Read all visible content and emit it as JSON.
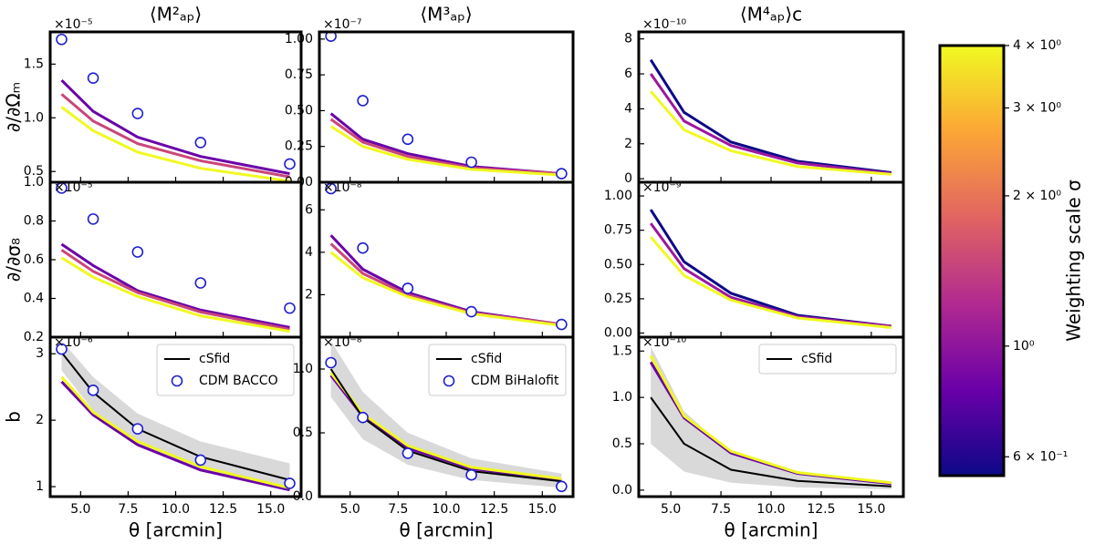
{
  "chart_data": [
    {
      "type": "line",
      "title": "⟨M²ₐₚ⟩",
      "ylabel": "∂/∂Ωₘ",
      "offset": "×10⁻⁵",
      "x": [
        4,
        5.66,
        8,
        11.31,
        16
      ],
      "xlim": [
        3.4,
        16.6
      ],
      "xticks": [
        5,
        7.5,
        10,
        12.5,
        15
      ],
      "ylim": [
        0.4,
        1.8
      ],
      "yticks": [
        0.5,
        {
          "value": 1,
          "label": "1.0"
        },
        1.5
      ],
      "series": [
        {
          "color": "#6a00a8",
          "values": [
            1.35,
            1.06,
            0.82,
            0.64,
            0.48
          ]
        },
        {
          "color": "#cb4679",
          "values": [
            1.22,
            0.97,
            0.76,
            0.6,
            0.45
          ]
        },
        {
          "color": "#f0f921",
          "values": [
            1.1,
            0.88,
            0.68,
            0.53,
            0.41
          ]
        },
        {
          "color": "#1f1fd0",
          "marker": "circle",
          "values": [
            1.73,
            1.37,
            1.04,
            0.77,
            0.57
          ]
        }
      ]
    },
    {
      "type": "line",
      "title": "⟨M³ₐₚ⟩",
      "offset": "×10⁻⁷",
      "x": [
        4,
        5.66,
        8,
        11.31,
        16
      ],
      "xlim": [
        3.4,
        16.6
      ],
      "xticks": [
        5,
        7.5,
        10,
        12.5,
        15
      ],
      "ylim": [
        0,
        1.05
      ],
      "yticks": [
        {
          "value": 0,
          "label": "0.00"
        },
        0.25,
        {
          "value": 0.5,
          "label": "0.50"
        },
        0.75,
        {
          "value": 1,
          "label": "1.00"
        }
      ],
      "series": [
        {
          "color": "#6a00a8",
          "values": [
            0.48,
            0.3,
            0.2,
            0.11,
            0.06
          ]
        },
        {
          "color": "#cb4679",
          "values": [
            0.44,
            0.28,
            0.18,
            0.1,
            0.06
          ]
        },
        {
          "color": "#f0f921",
          "values": [
            0.39,
            0.25,
            0.16,
            0.09,
            0.05
          ]
        },
        {
          "color": "#1f1fd0",
          "marker": "circle",
          "values": [
            1.02,
            0.57,
            0.3,
            0.14,
            0.06
          ]
        }
      ]
    },
    {
      "type": "line",
      "title": "⟨M⁴ₐₚ⟩c",
      "offset": "×10⁻¹⁰",
      "x": [
        4,
        5.66,
        8,
        11.31,
        16
      ],
      "xlim": [
        3.4,
        16.6
      ],
      "xticks": [
        5,
        7.5,
        10,
        12.5,
        15
      ],
      "ylim": [
        -0.2,
        8.4
      ],
      "yticks": [
        0,
        2,
        4,
        6,
        8
      ],
      "series": [
        {
          "color": "#0d0887",
          "values": [
            6.8,
            3.8,
            2.1,
            1.0,
            0.35
          ]
        },
        {
          "color": "#9c179e",
          "values": [
            6.0,
            3.3,
            1.9,
            0.9,
            0.3
          ]
        },
        {
          "color": "#f0f921",
          "values": [
            5.0,
            2.8,
            1.6,
            0.7,
            0.25
          ]
        }
      ]
    },
    {
      "type": "line",
      "ylabel": "∂/∂σ₈",
      "offset": "×10⁻⁵",
      "x": [
        4,
        5.66,
        8,
        11.31,
        16
      ],
      "xlim": [
        3.4,
        16.6
      ],
      "xticks": [
        5,
        7.5,
        10,
        12.5,
        15
      ],
      "ylim": [
        0.2,
        1.0
      ],
      "yticks": [
        0.2,
        0.4,
        0.6,
        0.8,
        {
          "value": 1,
          "label": "1.0"
        }
      ],
      "series": [
        {
          "color": "#6a00a8",
          "values": [
            0.68,
            0.57,
            0.44,
            0.34,
            0.25
          ]
        },
        {
          "color": "#cb4679",
          "values": [
            0.65,
            0.54,
            0.43,
            0.33,
            0.24
          ]
        },
        {
          "color": "#f0f921",
          "values": [
            0.61,
            0.51,
            0.41,
            0.31,
            0.23
          ]
        },
        {
          "color": "#1f1fd0",
          "marker": "circle",
          "values": [
            0.97,
            0.81,
            0.64,
            0.48,
            0.35
          ]
        }
      ]
    },
    {
      "type": "line",
      "offset": "×10⁻⁸",
      "x": [
        4,
        5.66,
        8,
        11.31,
        16
      ],
      "xlim": [
        3.4,
        16.6
      ],
      "xticks": [
        5,
        7.5,
        10,
        12.5,
        15
      ],
      "ylim": [
        0,
        7.3
      ],
      "yticks": [
        2,
        4,
        6
      ],
      "series": [
        {
          "color": "#6a00a8",
          "values": [
            4.8,
            3.2,
            2.1,
            1.2,
            0.6
          ]
        },
        {
          "color": "#cb4679",
          "values": [
            4.4,
            3.0,
            2.0,
            1.15,
            0.6
          ]
        },
        {
          "color": "#f0f921",
          "values": [
            4.0,
            2.8,
            1.9,
            1.1,
            0.55
          ]
        },
        {
          "color": "#1f1fd0",
          "marker": "circle",
          "values": [
            7.0,
            4.2,
            2.3,
            1.2,
            0.6
          ]
        }
      ]
    },
    {
      "type": "line",
      "offset": "×10⁻⁹",
      "x": [
        4,
        5.66,
        8,
        11.31,
        16
      ],
      "xlim": [
        3.4,
        16.6
      ],
      "xticks": [
        5,
        7.5,
        10,
        12.5,
        15
      ],
      "ylim": [
        -0.03,
        1.1
      ],
      "yticks": [
        {
          "value": 0,
          "label": "0.00"
        },
        0.25,
        {
          "value": 0.5,
          "label": "0.50"
        },
        0.75,
        {
          "value": 1,
          "label": "1.00"
        }
      ],
      "series": [
        {
          "color": "#0d0887",
          "values": [
            0.9,
            0.52,
            0.29,
            0.13,
            0.05
          ]
        },
        {
          "color": "#9c179e",
          "values": [
            0.8,
            0.47,
            0.26,
            0.12,
            0.05
          ]
        },
        {
          "color": "#f0f921",
          "values": [
            0.7,
            0.42,
            0.24,
            0.11,
            0.04
          ]
        }
      ]
    },
    {
      "type": "line",
      "ylabel": "b",
      "xlabel": "θ [arcmin]",
      "offset": "×10⁻⁶",
      "legend": "upper right",
      "x": [
        4,
        5.66,
        8,
        11.31,
        16
      ],
      "xlim": [
        3.4,
        16.6
      ],
      "xticks": [
        {
          "value": 5,
          "label": "5.0"
        },
        7.5,
        {
          "value": 10,
          "label": "10.0"
        },
        12.5,
        {
          "value": 15,
          "label": "15.0"
        }
      ],
      "ylim": [
        0.85,
        3.25
      ],
      "yticks": [
        1,
        2,
        3
      ],
      "band": {
        "color": "#d9d9d9",
        "lower": [
          2.75,
          2.15,
          1.65,
          1.25,
          0.95
        ],
        "upper": [
          3.2,
          2.65,
          2.1,
          1.68,
          1.35
        ]
      },
      "series": [
        {
          "color": "#6a00a8",
          "values": [
            2.58,
            2.08,
            1.63,
            1.25,
            0.95
          ]
        },
        {
          "color": "#f0f921",
          "values": [
            2.65,
            2.12,
            1.68,
            1.3,
            0.98
          ]
        },
        {
          "name": "cSfid",
          "color": "#000000",
          "values": [
            3.02,
            2.42,
            1.87,
            1.45,
            1.1
          ]
        },
        {
          "name": "CDM BACCO",
          "color": "#1f1fd0",
          "marker": "circle",
          "values": [
            3.07,
            2.45,
            1.87,
            1.4,
            1.05
          ]
        }
      ]
    },
    {
      "type": "line",
      "xlabel": "θ [arcmin]",
      "offset": "×10⁻⁸",
      "legend": "upper right",
      "x": [
        4,
        5.66,
        8,
        11.31,
        16
      ],
      "xlim": [
        3.4,
        16.6
      ],
      "xticks": [
        {
          "value": 5,
          "label": "5.0"
        },
        7.5,
        {
          "value": 10,
          "label": "10.0"
        },
        12.5,
        {
          "value": 15,
          "label": "15.0"
        }
      ],
      "ylim": [
        0,
        1.25
      ],
      "yticks": [
        {
          "value": 0,
          "label": "0.0"
        },
        0.5,
        {
          "value": 1,
          "label": "1.0"
        }
      ],
      "band": {
        "color": "#d9d9d9",
        "lower": [
          0.78,
          0.45,
          0.25,
          0.13,
          0.07
        ],
        "upper": [
          1.22,
          0.82,
          0.5,
          0.3,
          0.18
        ]
      },
      "series": [
        {
          "color": "#6a00a8",
          "values": [
            0.95,
            0.63,
            0.38,
            0.22,
            0.13
          ]
        },
        {
          "color": "#f0f921",
          "values": [
            0.97,
            0.65,
            0.4,
            0.23,
            0.14
          ]
        },
        {
          "name": "cSfid",
          "color": "#000000",
          "values": [
            1.0,
            0.62,
            0.36,
            0.2,
            0.12
          ]
        },
        {
          "name": "CDM BiHalofit",
          "color": "#1f1fd0",
          "marker": "circle",
          "values": [
            1.05,
            0.62,
            0.34,
            0.17,
            0.08
          ]
        }
      ]
    },
    {
      "type": "line",
      "xlabel": "θ [arcmin]",
      "offset": "×10⁻¹⁰",
      "legend": "upper right",
      "x": [
        4,
        5.66,
        8,
        11.31,
        16
      ],
      "xlim": [
        3.4,
        16.6
      ],
      "xticks": [
        {
          "value": 5,
          "label": "5.0"
        },
        7.5,
        {
          "value": 10,
          "label": "10.0"
        },
        12.5,
        {
          "value": 15,
          "label": "15.0"
        }
      ],
      "ylim": [
        -0.07,
        1.65
      ],
      "yticks": [
        {
          "value": 0,
          "label": "0.0"
        },
        0.5,
        {
          "value": 1,
          "label": "1.0"
        },
        1.5
      ],
      "band": {
        "color": "#d9d9d9",
        "lower": [
          0.5,
          0.2,
          0.08,
          0.03,
          0.01
        ],
        "upper": [
          1.55,
          0.85,
          0.4,
          0.18,
          0.08
        ]
      },
      "series": [
        {
          "color": "#6a00a8",
          "values": [
            1.38,
            0.78,
            0.4,
            0.18,
            0.07
          ]
        },
        {
          "color": "#f0f921",
          "values": [
            1.45,
            0.8,
            0.42,
            0.19,
            0.08
          ]
        },
        {
          "name": "cSfid",
          "color": "#000000",
          "values": [
            1.0,
            0.5,
            0.22,
            0.1,
            0.04
          ]
        }
      ]
    },
    {
      "type": "colorbar",
      "label": "Weighting scale σ",
      "log": true,
      "ylim": [
        0.55,
        4
      ],
      "colors": [
        "#0d0887",
        "#6a00a8",
        "#b12a90",
        "#e16462",
        "#fca636",
        "#f0f921"
      ],
      "yticks": [
        {
          "value": 4,
          "label": "4 × 10⁰"
        },
        {
          "value": 3,
          "label": "3 × 10⁰"
        },
        {
          "value": 2,
          "label": "2 × 10⁰"
        },
        {
          "value": 1,
          "label": "10⁰"
        },
        {
          "value": 0.6,
          "label": "6 × 10⁻¹"
        }
      ]
    }
  ]
}
